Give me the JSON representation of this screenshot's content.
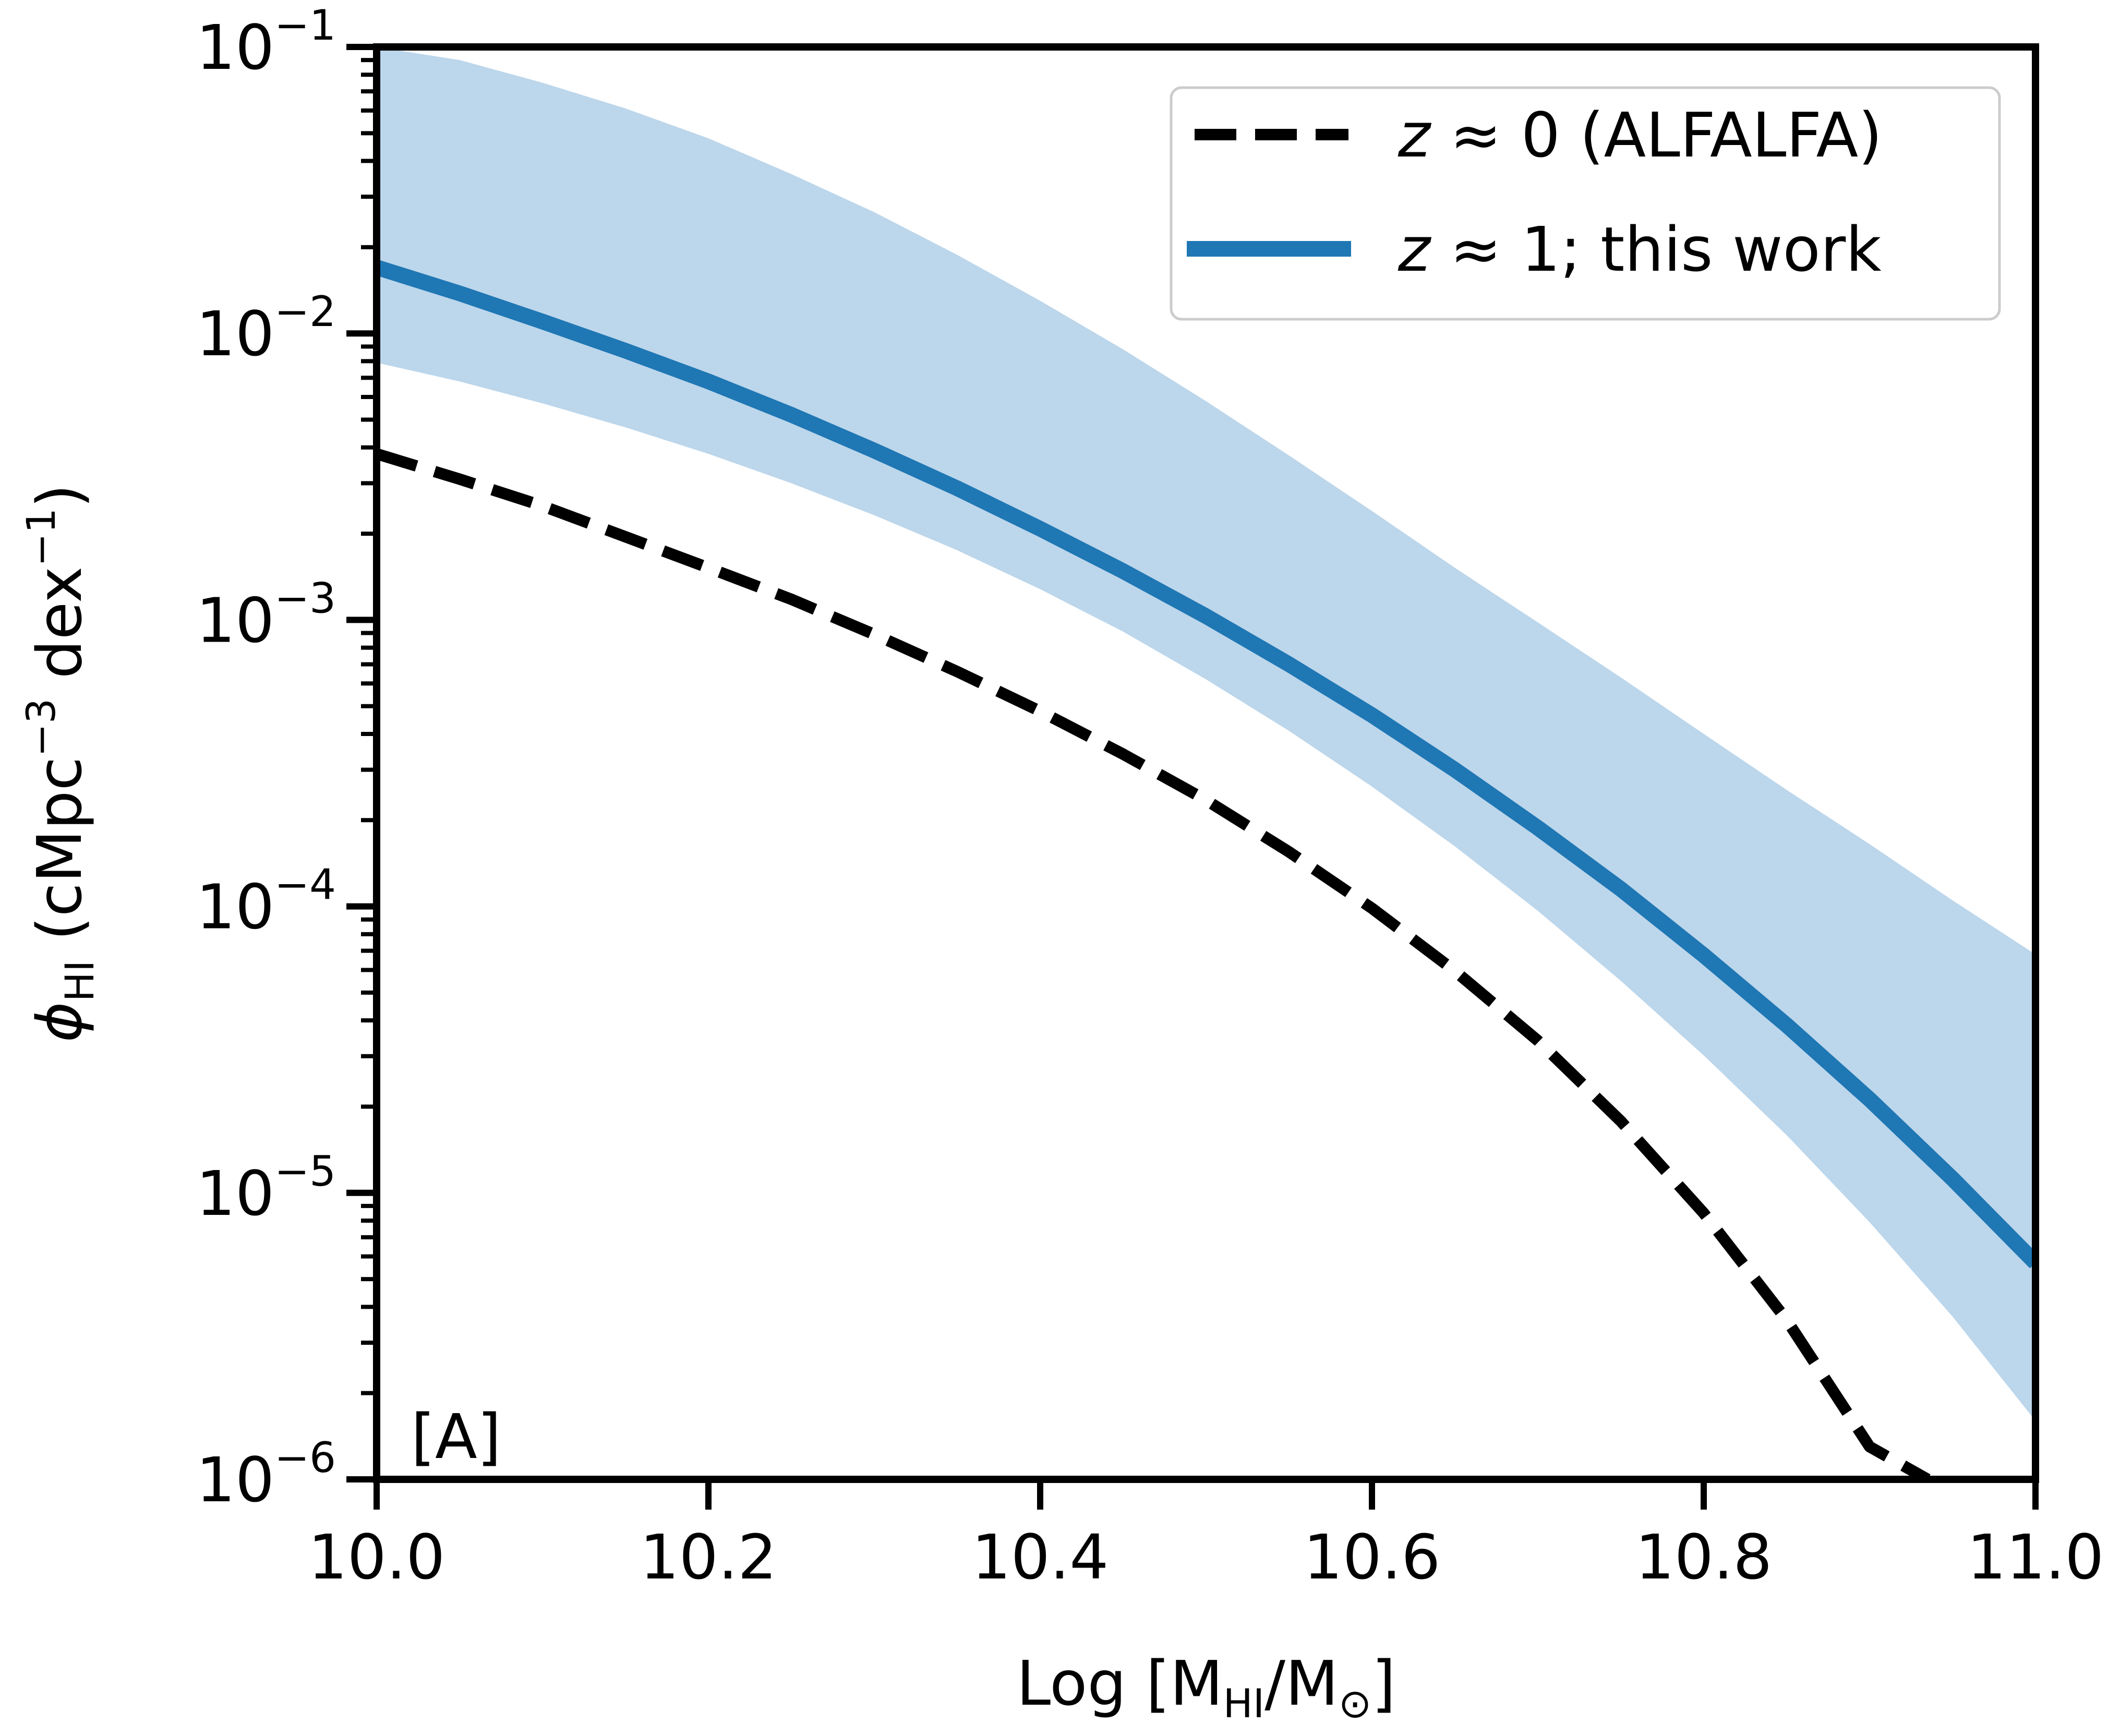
{
  "chart_data": {
    "type": "line",
    "title": "",
    "panel_label": "[A]",
    "xlabel": {
      "prefix": "Log [M",
      "sub1": "HI",
      "mid": "/M",
      "sub2": "⊙",
      "suffix": "]"
    },
    "ylabel": {
      "symbol": "ϕ",
      "symbol_sub": "HI",
      "units_open": " (cMpc",
      "units_exp1": "−3",
      "units_mid": " dex",
      "units_exp2": "−1",
      "units_close": ")"
    },
    "xlim": [
      10.0,
      11.0
    ],
    "ylim": [
      1e-06,
      0.1
    ],
    "yscale": "log",
    "x_ticks": [
      {
        "value": 10.0,
        "label": "10.0"
      },
      {
        "value": 10.2,
        "label": "10.2"
      },
      {
        "value": 10.4,
        "label": "10.4"
      },
      {
        "value": 10.6,
        "label": "10.6"
      },
      {
        "value": 10.8,
        "label": "10.8"
      },
      {
        "value": 11.0,
        "label": "11.0"
      }
    ],
    "y_ticks": [
      {
        "exp": -6,
        "base": "10",
        "exponent": "−6"
      },
      {
        "exp": -5,
        "base": "10",
        "exponent": "−5"
      },
      {
        "exp": -4,
        "base": "10",
        "exponent": "−4"
      },
      {
        "exp": -3,
        "base": "10",
        "exponent": "−3"
      },
      {
        "exp": -2,
        "base": "10",
        "exponent": "−2"
      },
      {
        "exp": -1,
        "base": "10",
        "exponent": "−1"
      }
    ],
    "legend_position": "top-right",
    "series": [
      {
        "name": "z ≈ 0 (ALFALFA)",
        "legend_symbol": "z",
        "legend_rest": " ≈ 0 (ALFALFA)",
        "style": "dashed",
        "color": "#000000",
        "x": [
          10.0,
          10.05,
          10.1,
          10.15,
          10.2,
          10.25,
          10.3,
          10.35,
          10.4,
          10.45,
          10.5,
          10.55,
          10.6,
          10.65,
          10.7,
          10.75,
          10.8,
          10.85,
          10.9,
          10.935
        ],
        "y": [
          0.0038,
          0.0031,
          0.0025,
          0.00195,
          0.00152,
          0.00118,
          0.00089,
          0.00066,
          0.00048,
          0.00034,
          0.000235,
          0.000155,
          9.85e-05,
          5.95e-05,
          3.4e-05,
          1.78e-05,
          8.5e-06,
          3.6e-06,
          1.3e-06,
          1e-06
        ]
      },
      {
        "name": "z ≈ 1; this work",
        "legend_symbol": "z",
        "legend_rest": " ≈ 1; this work",
        "style": "solid",
        "color": "#1f77b4",
        "x": [
          10.0,
          10.05,
          10.1,
          10.15,
          10.2,
          10.25,
          10.3,
          10.35,
          10.4,
          10.45,
          10.5,
          10.55,
          10.6,
          10.65,
          10.7,
          10.75,
          10.8,
          10.85,
          10.9,
          10.95,
          11.0
        ],
        "y": [
          0.017,
          0.0138,
          0.011,
          0.0087,
          0.0068,
          0.0052,
          0.0039,
          0.00288,
          0.00208,
          0.00148,
          0.00103,
          0.0007,
          0.000465,
          0.0003,
          0.000188,
          0.000115,
          6.75e-05,
          3.85e-05,
          2.12e-05,
          1.12e-05,
          5.7e-06
        ],
        "band": {
          "color": "#bcd6eb",
          "upper": [
            0.1,
            0.09,
            0.075,
            0.061,
            0.048,
            0.036,
            0.0265,
            0.0188,
            0.013,
            0.0088,
            0.0058,
            0.00375,
            0.0024,
            0.00152,
            0.00098,
            0.00063,
            0.0004,
            0.000255,
            0.000165,
            0.000105,
            6.8e-05
          ],
          "lower": [
            0.0079,
            0.0068,
            0.0057,
            0.0047,
            0.0038,
            0.003,
            0.00232,
            0.00175,
            0.00128,
            0.00091,
            0.00062,
            0.00041,
            0.000262,
            0.000162,
            9.65e-05,
            5.5e-05,
            3.02e-05,
            1.59e-05,
            7.9e-06,
            3.7e-06,
            1.6e-06
          ]
        }
      }
    ]
  }
}
